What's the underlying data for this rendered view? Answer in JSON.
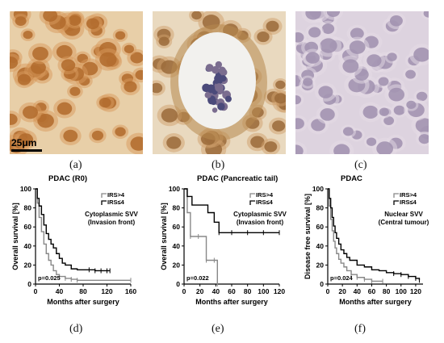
{
  "panels": {
    "a": {
      "label": "(a)",
      "scale_bar": "25μm",
      "stain": "#c9884a"
    },
    "b": {
      "label": "(b)",
      "stain": "#b98a55"
    },
    "c": {
      "label": "(c)",
      "stain": "#c9b8cc"
    },
    "d": {
      "label": "(d)"
    },
    "e": {
      "label": "(e)"
    },
    "f": {
      "label": "(f)"
    }
  },
  "chart_data": [
    {
      "type": "line",
      "title": "PDAC (R0)",
      "ylabel": "Overall survival [%]",
      "xlabel": "Months after surgery",
      "annotation": "Cytoplasmic SVV\n(Invasion front)",
      "pvalue": "p=0.025",
      "xlim": [
        0,
        160
      ],
      "ylim": [
        0,
        100
      ],
      "xticks": [
        0,
        40,
        80,
        120,
        160
      ],
      "yticks": [
        0,
        20,
        40,
        60,
        80,
        100
      ],
      "legend_position": "top-right",
      "series": [
        {
          "name": "IRS>4",
          "color": "#888888",
          "x": [
            0,
            3,
            6,
            10,
            14,
            18,
            22,
            26,
            30,
            35,
            40,
            50,
            60,
            70,
            160
          ],
          "y": [
            100,
            85,
            70,
            55,
            42,
            32,
            25,
            20,
            14,
            10,
            8,
            6,
            5,
            4,
            4
          ]
        },
        {
          "name": "IRS≤4",
          "color": "#000000",
          "x": [
            0,
            3,
            6,
            10,
            14,
            18,
            22,
            26,
            30,
            35,
            40,
            45,
            50,
            60,
            70,
            80,
            90,
            100,
            110,
            120,
            125
          ],
          "y": [
            100,
            90,
            82,
            73,
            62,
            53,
            47,
            42,
            38,
            32,
            27,
            22,
            20,
            16,
            15,
            15,
            15,
            14,
            14,
            14,
            14
          ]
        }
      ]
    },
    {
      "type": "line",
      "title": "PDAC (Pancreatic tail)",
      "ylabel": "Overall survival [%]",
      "xlabel": "Months after surgery",
      "annotation": "Cytoplasmic SVV\n(Invasion front)",
      "pvalue": "p=0.022",
      "xlim": [
        0,
        120
      ],
      "ylim": [
        0,
        100
      ],
      "xticks": [
        0,
        20,
        40,
        60,
        80,
        100,
        120
      ],
      "yticks": [
        0,
        20,
        40,
        60,
        80,
        100
      ],
      "legend_position": "top-right",
      "series": [
        {
          "name": "IRS>4",
          "color": "#888888",
          "x": [
            0,
            4,
            8,
            18,
            28,
            38,
            42
          ],
          "y": [
            100,
            75,
            50,
            50,
            25,
            25,
            0
          ]
        },
        {
          "name": "IRS≤4",
          "color": "#000000",
          "x": [
            0,
            4,
            10,
            20,
            30,
            38,
            44,
            60,
            80,
            100,
            120
          ],
          "y": [
            100,
            92,
            83,
            83,
            75,
            65,
            54,
            54,
            54,
            54,
            54
          ]
        }
      ]
    },
    {
      "type": "line",
      "title": "PDAC",
      "ylabel": "Disease free survival [%]",
      "xlabel": "Months after surgery",
      "annotation": "Nuclear SVV\n(Central tumour)",
      "pvalue": "p=0.024",
      "xlim": [
        0,
        130
      ],
      "ylim": [
        0,
        100
      ],
      "xticks": [
        0,
        20,
        40,
        60,
        80,
        100,
        120
      ],
      "yticks": [
        0,
        20,
        40,
        60,
        80,
        100
      ],
      "legend_position": "top-right",
      "series": [
        {
          "name": "IRS>4",
          "color": "#888888",
          "x": [
            0,
            2,
            4,
            6,
            8,
            10,
            12,
            15,
            18,
            22,
            26,
            32,
            40,
            50,
            60,
            75
          ],
          "y": [
            100,
            82,
            68,
            56,
            45,
            38,
            32,
            26,
            22,
            18,
            14,
            10,
            7,
            5,
            3,
            3
          ]
        },
        {
          "name": "IRS≤4",
          "color": "#000000",
          "x": [
            0,
            2,
            4,
            6,
            8,
            10,
            12,
            15,
            18,
            22,
            26,
            30,
            40,
            50,
            60,
            70,
            80,
            90,
            100,
            110,
            120,
            125
          ],
          "y": [
            100,
            90,
            80,
            70,
            61,
            54,
            48,
            42,
            36,
            32,
            28,
            25,
            20,
            18,
            15,
            14,
            12,
            11,
            10,
            8,
            6,
            4
          ]
        }
      ]
    }
  ]
}
